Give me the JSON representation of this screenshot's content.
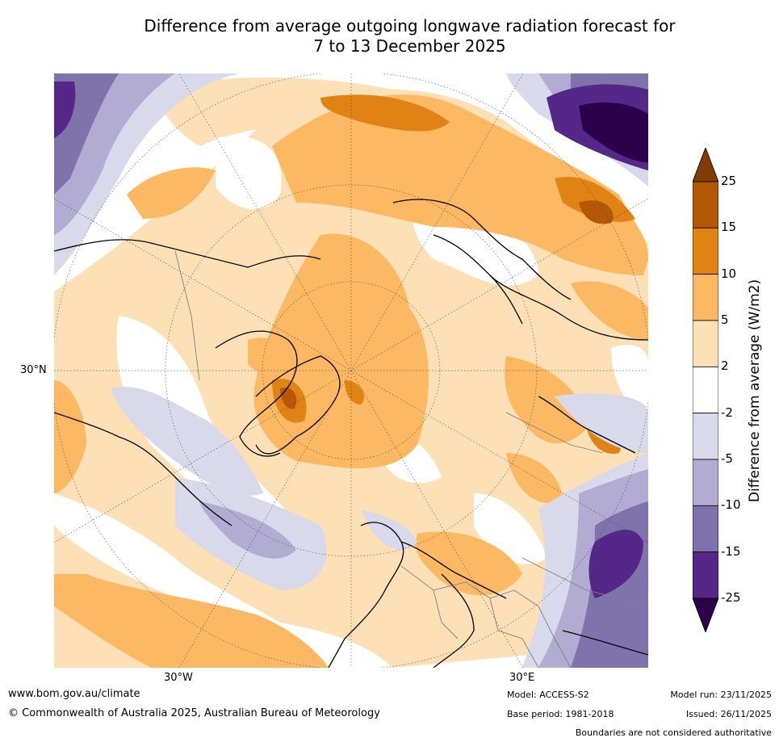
{
  "title": {
    "line1": "Difference from average outgoing longwave radiation forecast for",
    "line2": "7 to 13 December 2025"
  },
  "map": {
    "projection": "north-polar-stereographic",
    "region": "Northern Hemisphere",
    "axis_labels": {
      "left_lat": "30°N",
      "bottom_west": "30°W",
      "bottom_east": "30°E"
    }
  },
  "legend": {
    "title": "Difference from average (W/m2)",
    "tick_labels": [
      "25",
      "15",
      "10",
      "5",
      "2",
      "-2",
      "-5",
      "-10",
      "-15",
      "-25"
    ],
    "bins": [
      {
        "range": "> 25",
        "color": "#7f3b08"
      },
      {
        "range": "15 to 25",
        "color": "#b35806"
      },
      {
        "range": "10 to 15",
        "color": "#e08214"
      },
      {
        "range": "5 to 10",
        "color": "#fdb863"
      },
      {
        "range": "2 to 5",
        "color": "#fee0b6"
      },
      {
        "range": "-2 to 2",
        "color": "#ffffff"
      },
      {
        "range": "-5 to -2",
        "color": "#d8daeb"
      },
      {
        "range": "-10 to -5",
        "color": "#b2abd2"
      },
      {
        "range": "-15 to -10",
        "color": "#8073ac"
      },
      {
        "range": "-25 to -15",
        "color": "#542788"
      },
      {
        "range": "< -25",
        "color": "#2d004b"
      }
    ]
  },
  "footer": {
    "website": "www.bom.gov.au/climate",
    "copyright": "© Commonwealth of Australia 2025, Australian Bureau of Meteorology",
    "model": "Model: ACCESS-S2",
    "base_period": "Base period: 1981-2018",
    "model_run": "Model run: 23/11/2025",
    "issued": "Issued: 26/11/2025",
    "disclaimer": "Boundaries are not considered authoritative"
  }
}
